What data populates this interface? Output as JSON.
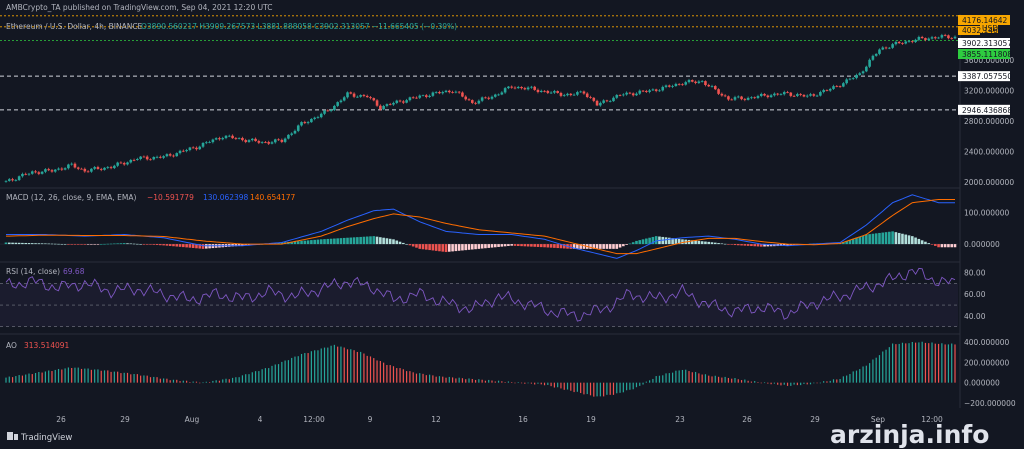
{
  "header": {
    "publisher": "AMBCrypto_TA published on TradingView.com, Sep 04, 2021 12:20 UTC",
    "symbol": "Ethereum / U.S. Dollar, 4h, BINANCE",
    "ohlc": "O3890.560217 H3909.267573 L3881.888058 C3902.313057 −11.665405 (−0.30%)"
  },
  "branding": {
    "tradingview": "TradingView",
    "watermark": "arzinja.info"
  },
  "colors": {
    "bg": "#131722",
    "up": "#26a69a",
    "down": "#ef5350",
    "macd": "#2962ff",
    "signal": "#ff6d00",
    "rsi": "#7e57c2",
    "ao_up": "#26a69a",
    "ao_down": "#ef5350",
    "level": "#d1d4dc"
  },
  "price_badges": {
    "ask_top": "4176.14642",
    "currency": "USD",
    "ask_second": "4032.14642",
    "last": "3902.313057",
    "green_level": "3855.111808"
  },
  "levels": [
    {
      "label": "3387.057550",
      "value": 3387.05755
    },
    {
      "label": "2946.436868",
      "value": 2946.436868
    }
  ],
  "indicators": {
    "macd": {
      "title": "MACD (12, 26, close, 9, EMA, EMA)",
      "v1": "−10.591779",
      "v2": "130.062398",
      "v3": "140.654177"
    },
    "rsi": {
      "title": "RSI (14, close)",
      "value": "69.68"
    },
    "ao": {
      "title": "AO",
      "value": "313.514091"
    }
  },
  "chart_data": [
    {
      "type": "candlestick",
      "title": "Ethereum / U.S. Dollar, 4h, BINANCE",
      "x_ticks": [
        "26",
        "29",
        "Aug",
        "4",
        "12:00",
        "9",
        "12",
        "16",
        "19",
        "23",
        "26",
        "29",
        "Sep",
        "12:00"
      ],
      "y_ticks": [
        "2000.000000",
        "2400.000000",
        "2800.000000",
        "3200.000000",
        "3600.000000"
      ],
      "ylim": [
        1950,
        4200
      ],
      "close_path": [
        [
          0,
          2010
        ],
        [
          8,
          2130
        ],
        [
          14,
          2150
        ],
        [
          20,
          2220
        ],
        [
          24,
          2150
        ],
        [
          32,
          2200
        ],
        [
          40,
          2310
        ],
        [
          48,
          2330
        ],
        [
          58,
          2460
        ],
        [
          66,
          2600
        ],
        [
          72,
          2560
        ],
        [
          78,
          2520
        ],
        [
          84,
          2540
        ],
        [
          90,
          2760
        ],
        [
          98,
          2930
        ],
        [
          104,
          3150
        ],
        [
          110,
          3120
        ],
        [
          114,
          2980
        ],
        [
          120,
          3060
        ],
        [
          128,
          3140
        ],
        [
          136,
          3200
        ],
        [
          142,
          3040
        ],
        [
          148,
          3120
        ],
        [
          154,
          3250
        ],
        [
          160,
          3220
        ],
        [
          166,
          3170
        ],
        [
          172,
          3140
        ],
        [
          176,
          3180
        ],
        [
          180,
          3010
        ],
        [
          184,
          3090
        ],
        [
          188,
          3150
        ],
        [
          194,
          3180
        ],
        [
          200,
          3230
        ],
        [
          206,
          3300
        ],
        [
          212,
          3320
        ],
        [
          216,
          3200
        ],
        [
          220,
          3090
        ],
        [
          226,
          3100
        ],
        [
          232,
          3140
        ],
        [
          238,
          3160
        ],
        [
          244,
          3120
        ],
        [
          250,
          3200
        ],
        [
          256,
          3320
        ],
        [
          260,
          3420
        ],
        [
          266,
          3740
        ],
        [
          272,
          3820
        ],
        [
          278,
          3870
        ],
        [
          284,
          3900
        ]
      ],
      "last": 3902.313057
    },
    {
      "type": "line+histogram",
      "title": "MACD (12, 26, close, 9, EMA, EMA)",
      "y_ticks": [
        "0.000000",
        "100.000000"
      ],
      "ylim": [
        -50,
        170
      ],
      "macd": [
        [
          0,
          30
        ],
        [
          12,
          30
        ],
        [
          24,
          25
        ],
        [
          36,
          30
        ],
        [
          48,
          20
        ],
        [
          60,
          -5
        ],
        [
          72,
          -5
        ],
        [
          84,
          5
        ],
        [
          96,
          40
        ],
        [
          104,
          75
        ],
        [
          112,
          105
        ],
        [
          118,
          110
        ],
        [
          126,
          70
        ],
        [
          134,
          40
        ],
        [
          144,
          30
        ],
        [
          154,
          30
        ],
        [
          164,
          15
        ],
        [
          172,
          -10
        ],
        [
          180,
          -30
        ],
        [
          186,
          -45
        ],
        [
          192,
          -20
        ],
        [
          198,
          10
        ],
        [
          206,
          20
        ],
        [
          214,
          25
        ],
        [
          222,
          15
        ],
        [
          230,
          0
        ],
        [
          238,
          -5
        ],
        [
          246,
          0
        ],
        [
          254,
          5
        ],
        [
          262,
          60
        ],
        [
          270,
          130
        ],
        [
          276,
          155
        ],
        [
          284,
          130
        ]
      ],
      "signal": [
        [
          0,
          25
        ],
        [
          12,
          28
        ],
        [
          24,
          27
        ],
        [
          36,
          27
        ],
        [
          48,
          24
        ],
        [
          60,
          10
        ],
        [
          72,
          0
        ],
        [
          84,
          0
        ],
        [
          96,
          25
        ],
        [
          104,
          55
        ],
        [
          112,
          80
        ],
        [
          118,
          95
        ],
        [
          126,
          85
        ],
        [
          134,
          65
        ],
        [
          144,
          45
        ],
        [
          154,
          35
        ],
        [
          164,
          25
        ],
        [
          172,
          5
        ],
        [
          180,
          -15
        ],
        [
          186,
          -30
        ],
        [
          192,
          -30
        ],
        [
          198,
          -15
        ],
        [
          206,
          5
        ],
        [
          214,
          18
        ],
        [
          222,
          18
        ],
        [
          230,
          8
        ],
        [
          238,
          0
        ],
        [
          246,
          -2
        ],
        [
          254,
          2
        ],
        [
          262,
          30
        ],
        [
          270,
          90
        ],
        [
          276,
          130
        ],
        [
          284,
          140
        ]
      ]
    },
    {
      "type": "line",
      "title": "RSI (14, close)",
      "y_ticks": [
        "40.00",
        "60.00",
        "80.00"
      ],
      "ylim": [
        25,
        88
      ],
      "upper_band": 70,
      "lower_band": 30,
      "values": [
        [
          0,
          68
        ],
        [
          8,
          72
        ],
        [
          16,
          66
        ],
        [
          24,
          70
        ],
        [
          32,
          63
        ],
        [
          40,
          65
        ],
        [
          48,
          60
        ],
        [
          56,
          55
        ],
        [
          64,
          60
        ],
        [
          72,
          56
        ],
        [
          80,
          62
        ],
        [
          88,
          58
        ],
        [
          96,
          65
        ],
        [
          104,
          72
        ],
        [
          112,
          66
        ],
        [
          118,
          55
        ],
        [
          126,
          60
        ],
        [
          134,
          52
        ],
        [
          142,
          46
        ],
        [
          150,
          58
        ],
        [
          158,
          52
        ],
        [
          166,
          44
        ],
        [
          174,
          40
        ],
        [
          182,
          46
        ],
        [
          190,
          60
        ],
        [
          198,
          56
        ],
        [
          206,
          62
        ],
        [
          214,
          50
        ],
        [
          222,
          44
        ],
        [
          230,
          48
        ],
        [
          238,
          42
        ],
        [
          246,
          52
        ],
        [
          254,
          58
        ],
        [
          262,
          66
        ],
        [
          270,
          74
        ],
        [
          276,
          82
        ],
        [
          282,
          74
        ],
        [
          288,
          70
        ]
      ]
    },
    {
      "type": "histogram",
      "title": "AO",
      "y_ticks": [
        "−200.000000",
        "0.000000",
        "200.000000",
        "400.000000"
      ],
      "ylim": [
        -230,
        460
      ],
      "values": [
        [
          0,
          50
        ],
        [
          10,
          100
        ],
        [
          20,
          150
        ],
        [
          30,
          120
        ],
        [
          40,
          80
        ],
        [
          50,
          30
        ],
        [
          60,
          0
        ],
        [
          70,
          50
        ],
        [
          80,
          150
        ],
        [
          90,
          280
        ],
        [
          100,
          370
        ],
        [
          108,
          300
        ],
        [
          116,
          180
        ],
        [
          124,
          100
        ],
        [
          132,
          60
        ],
        [
          140,
          40
        ],
        [
          148,
          20
        ],
        [
          156,
          0
        ],
        [
          164,
          -20
        ],
        [
          172,
          -80
        ],
        [
          180,
          -140
        ],
        [
          186,
          -110
        ],
        [
          192,
          -50
        ],
        [
          198,
          60
        ],
        [
          206,
          130
        ],
        [
          214,
          70
        ],
        [
          222,
          40
        ],
        [
          230,
          0
        ],
        [
          238,
          -30
        ],
        [
          246,
          -10
        ],
        [
          254,
          40
        ],
        [
          262,
          170
        ],
        [
          270,
          380
        ],
        [
          278,
          400
        ],
        [
          286,
          380
        ]
      ]
    }
  ]
}
